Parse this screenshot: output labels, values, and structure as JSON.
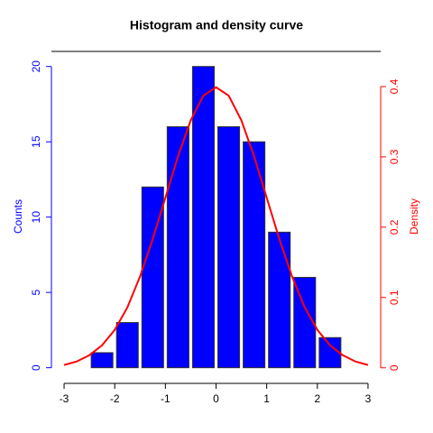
{
  "chart_data": {
    "type": "histogram",
    "title": "Histogram and density curve",
    "bins": [
      -2.5,
      -2,
      -1.5,
      -1,
      -0.5,
      0,
      0.5,
      1,
      1.5,
      2,
      2.5
    ],
    "series": [
      {
        "name": "Counts",
        "color": "#0000ff",
        "values": [
          1,
          3,
          12,
          16,
          20,
          16,
          15,
          9,
          6,
          2
        ]
      },
      {
        "name": "Density",
        "color": "#ff0000",
        "axis": "y2",
        "type": "line",
        "x": [
          -3,
          -2.75,
          -2.5,
          -2.25,
          -2,
          -1.75,
          -1.5,
          -1.25,
          -1,
          -0.75,
          -0.5,
          -0.25,
          0,
          0.25,
          0.5,
          0.75,
          1,
          1.25,
          1.5,
          1.75,
          2,
          2.25,
          2.5,
          2.75,
          3
        ],
        "values": [
          0.004,
          0.009,
          0.018,
          0.032,
          0.054,
          0.086,
          0.13,
          0.183,
          0.242,
          0.301,
          0.352,
          0.387,
          0.399,
          0.387,
          0.352,
          0.301,
          0.242,
          0.183,
          0.13,
          0.086,
          0.054,
          0.032,
          0.018,
          0.009,
          0.004
        ]
      }
    ],
    "xlim": [
      -3.25,
      3.25
    ],
    "xticks": [
      -3,
      -2,
      -1,
      0,
      1,
      2,
      3
    ],
    "ylim": [
      -0.8,
      21
    ],
    "yticks": [
      0,
      5,
      10,
      15,
      20
    ],
    "y2lim": [
      -0.017,
      0.45
    ],
    "y2ticks": [
      0,
      0.1,
      0.2,
      0.3,
      0.4
    ]
  }
}
